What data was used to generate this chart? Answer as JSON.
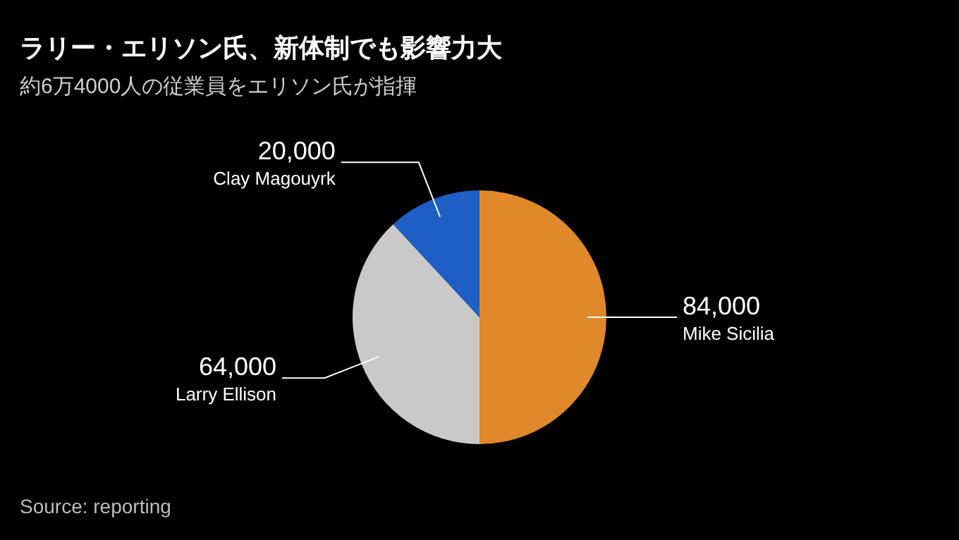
{
  "chart_data": {
    "type": "pie",
    "title": "ラリー・エリソン氏、新体制でも影響力大",
    "subtitle": "約6万4000人の従業員をエリソン氏が指揮",
    "categories": [
      "Mike Sicilia",
      "Larry Ellison",
      "Clay Magouyrk"
    ],
    "values": [
      84000,
      64000,
      20000
    ],
    "value_labels": [
      "84,000",
      "64,000",
      "20,000"
    ],
    "colors": [
      "#e0892a",
      "#c9c9c9",
      "#1d5fc4"
    ],
    "annotations": [
      "Source: reporting"
    ]
  }
}
